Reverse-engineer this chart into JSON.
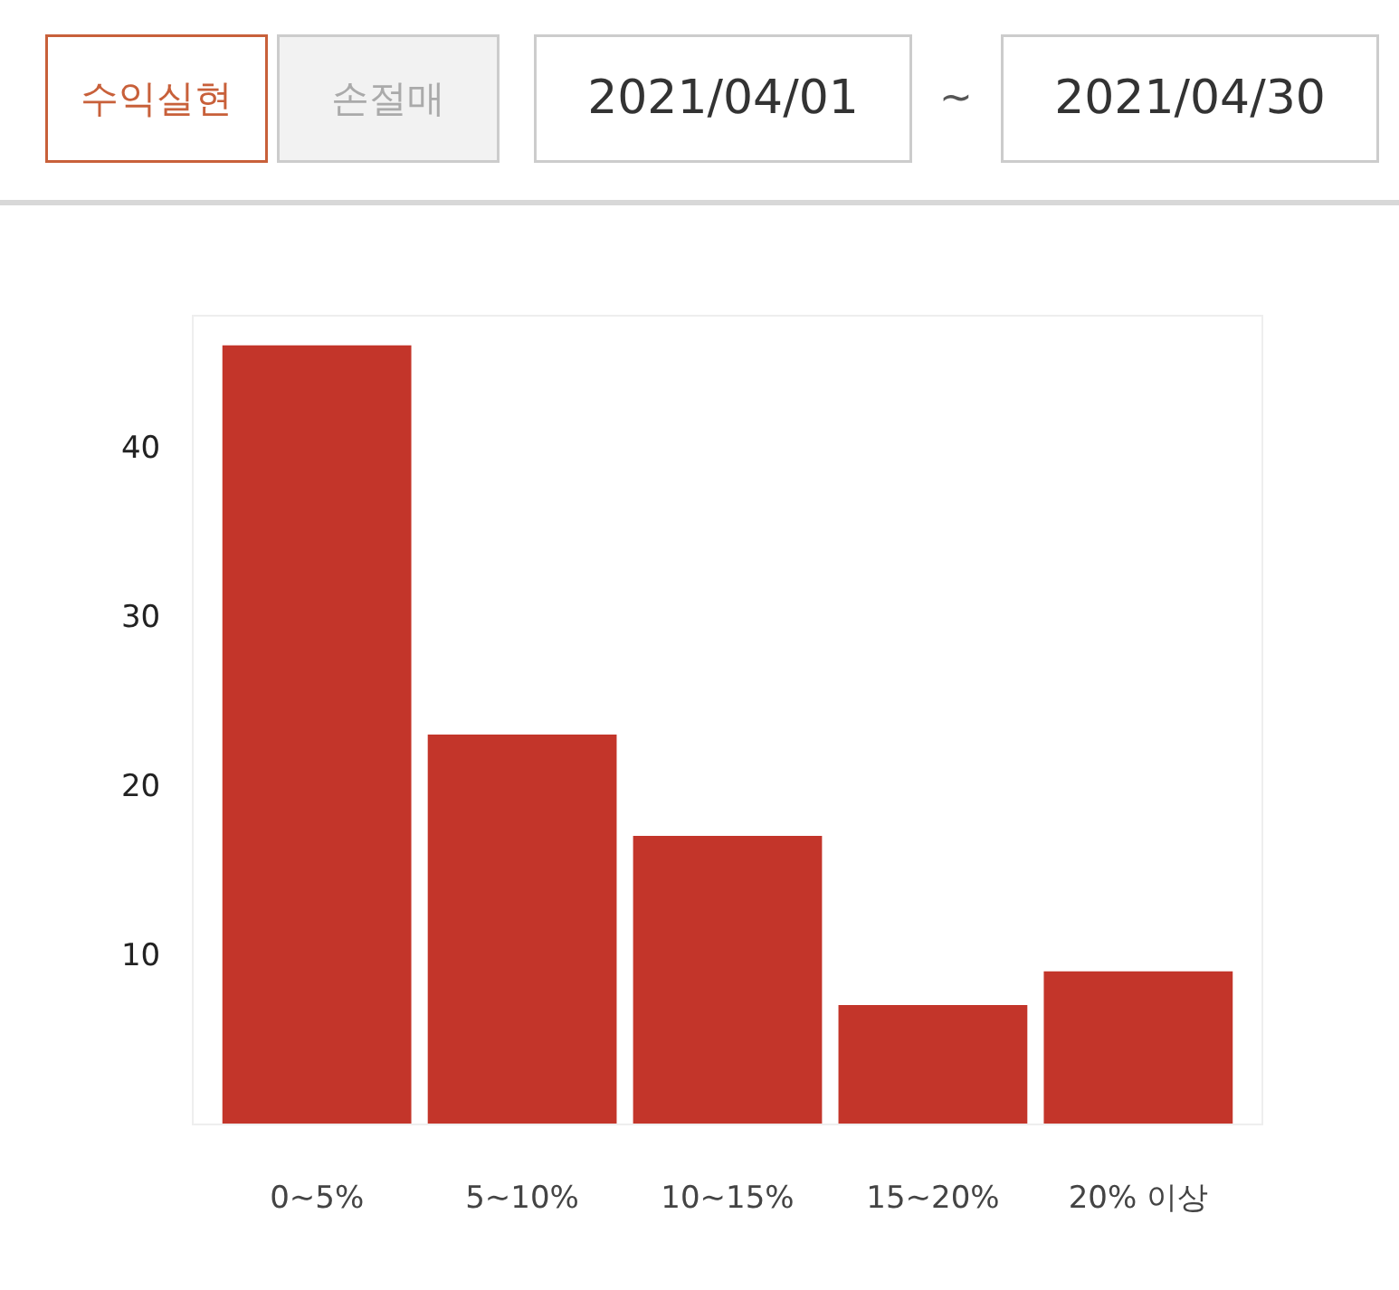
{
  "chart_data": {
    "type": "bar",
    "categories": [
      "0~5%",
      "5~10%",
      "10~15%",
      "15~20%",
      "20% 이상"
    ],
    "values": [
      46,
      23,
      17,
      7,
      9
    ],
    "color": "#c3352a",
    "ylim": [
      0,
      47.7
    ],
    "yticks": [
      10,
      20,
      30,
      40
    ],
    "grid": false,
    "annotations": [
      "수익실현",
      "손절매",
      "2021/04/01",
      "~",
      "2021/04/30"
    ]
  }
}
